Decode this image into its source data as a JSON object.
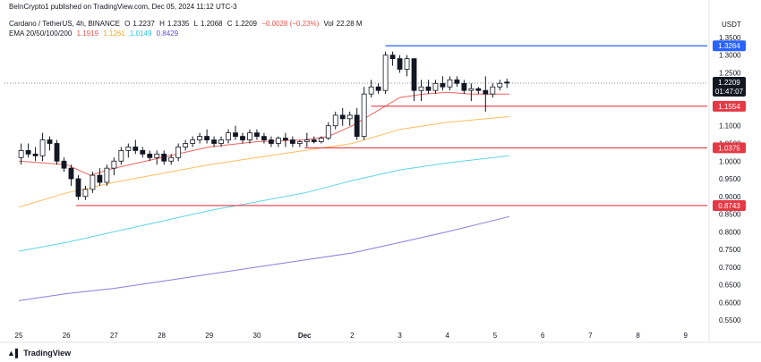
{
  "published": "BeInCrypto1 published on TradingView.com, Dec 05, 2024 11:12 UTC-3",
  "header": {
    "symbol": "Cardano / TetherUS, 4h, BINANCE",
    "o_label": "O",
    "o_val": "1.2237",
    "h_label": "H",
    "h_val": "1.2335",
    "l_label": "L",
    "l_val": "1.2068",
    "c_label": "C",
    "c_val": "1.2209",
    "change": "−0.0028 (−0.23%)",
    "vol_label": "Vol",
    "vol_val": "22.28 M",
    "ema_label": "EMA 20/50/100/200",
    "ema20": "1.1919",
    "ema50": "1.1261",
    "ema100": "1.0149",
    "ema200": "0.8429"
  },
  "colors": {
    "up": "#ffffff",
    "down": "#131722",
    "wick": "#131722",
    "ema20": "#f05350",
    "ema50": "#ffb74d",
    "ema100": "#4dd0e1",
    "ema200": "#7e6fdb",
    "resistance": "#2962ff",
    "support": "#e53945",
    "price_line": "#8a8a8a"
  },
  "footer": {
    "brand": "TradingView"
  },
  "chart_data": {
    "type": "candlestick",
    "title": "Cardano / TetherUS, 4h, BINANCE",
    "currency": "USDT",
    "ylim": [
      0.52,
      1.37
    ],
    "y_ticks": [
      "1.3500",
      "1.3000",
      "1.2500",
      "1.2000",
      "1.1500",
      "1.1000",
      "1.0500",
      "1.0000",
      "0.9500",
      "0.9000",
      "0.8500",
      "0.8000",
      "0.7500",
      "0.7000",
      "0.6500",
      "0.6000",
      "0.5500"
    ],
    "x_ticks": [
      "25",
      "26",
      "27",
      "28",
      "29",
      "30",
      "Dec",
      "2",
      "3",
      "4",
      "5",
      "6",
      "7",
      "8",
      "9"
    ],
    "candles": [
      {
        "x": 0.05,
        "o": 1.01,
        "h": 1.05,
        "l": 0.99,
        "c": 1.03
      },
      {
        "x": 0.2,
        "o": 1.03,
        "h": 1.05,
        "l": 1.01,
        "c": 1.02
      },
      {
        "x": 0.35,
        "o": 1.02,
        "h": 1.04,
        "l": 1.0,
        "c": 1.015
      },
      {
        "x": 0.5,
        "o": 1.015,
        "h": 1.08,
        "l": 1.0,
        "c": 1.06
      },
      {
        "x": 0.65,
        "o": 1.06,
        "h": 1.07,
        "l": 1.03,
        "c": 1.05
      },
      {
        "x": 0.8,
        "o": 1.05,
        "h": 1.06,
        "l": 0.99,
        "c": 1.0
      },
      {
        "x": 0.95,
        "o": 1.0,
        "h": 1.01,
        "l": 0.97,
        "c": 0.98
      },
      {
        "x": 1.1,
        "o": 0.98,
        "h": 0.99,
        "l": 0.93,
        "c": 0.95
      },
      {
        "x": 1.25,
        "o": 0.95,
        "h": 0.96,
        "l": 0.89,
        "c": 0.9
      },
      {
        "x": 1.4,
        "o": 0.9,
        "h": 0.93,
        "l": 0.89,
        "c": 0.92
      },
      {
        "x": 1.55,
        "o": 0.92,
        "h": 0.97,
        "l": 0.91,
        "c": 0.96
      },
      {
        "x": 1.7,
        "o": 0.96,
        "h": 0.98,
        "l": 0.93,
        "c": 0.94
      },
      {
        "x": 1.85,
        "o": 0.94,
        "h": 0.99,
        "l": 0.93,
        "c": 0.98
      },
      {
        "x": 2.0,
        "o": 0.98,
        "h": 1.01,
        "l": 0.96,
        "c": 1.0
      },
      {
        "x": 2.15,
        "o": 1.0,
        "h": 1.04,
        "l": 0.99,
        "c": 1.03
      },
      {
        "x": 2.3,
        "o": 1.03,
        "h": 1.05,
        "l": 1.01,
        "c": 1.04
      },
      {
        "x": 2.45,
        "o": 1.04,
        "h": 1.06,
        "l": 1.02,
        "c": 1.03
      },
      {
        "x": 2.6,
        "o": 1.03,
        "h": 1.04,
        "l": 1.01,
        "c": 1.02
      },
      {
        "x": 2.75,
        "o": 1.02,
        "h": 1.03,
        "l": 1.0,
        "c": 1.01
      },
      {
        "x": 2.9,
        "o": 1.01,
        "h": 1.03,
        "l": 0.99,
        "c": 1.02
      },
      {
        "x": 3.05,
        "o": 1.02,
        "h": 1.03,
        "l": 0.99,
        "c": 1.0
      },
      {
        "x": 3.2,
        "o": 1.0,
        "h": 1.02,
        "l": 0.99,
        "c": 1.01
      },
      {
        "x": 3.35,
        "o": 1.01,
        "h": 1.05,
        "l": 1.0,
        "c": 1.04
      },
      {
        "x": 3.5,
        "o": 1.04,
        "h": 1.06,
        "l": 1.03,
        "c": 1.05
      },
      {
        "x": 3.65,
        "o": 1.05,
        "h": 1.07,
        "l": 1.04,
        "c": 1.06
      },
      {
        "x": 3.8,
        "o": 1.06,
        "h": 1.08,
        "l": 1.05,
        "c": 1.07
      },
      {
        "x": 3.95,
        "o": 1.07,
        "h": 1.09,
        "l": 1.05,
        "c": 1.06
      },
      {
        "x": 4.1,
        "o": 1.06,
        "h": 1.07,
        "l": 1.04,
        "c": 1.05
      },
      {
        "x": 4.25,
        "o": 1.05,
        "h": 1.07,
        "l": 1.04,
        "c": 1.06
      },
      {
        "x": 4.4,
        "o": 1.06,
        "h": 1.09,
        "l": 1.05,
        "c": 1.08
      },
      {
        "x": 4.55,
        "o": 1.08,
        "h": 1.1,
        "l": 1.06,
        "c": 1.07
      },
      {
        "x": 4.7,
        "o": 1.07,
        "h": 1.08,
        "l": 1.05,
        "c": 1.06
      },
      {
        "x": 4.85,
        "o": 1.06,
        "h": 1.09,
        "l": 1.05,
        "c": 1.08
      },
      {
        "x": 5.0,
        "o": 1.08,
        "h": 1.09,
        "l": 1.06,
        "c": 1.07
      },
      {
        "x": 5.15,
        "o": 1.07,
        "h": 1.08,
        "l": 1.05,
        "c": 1.06
      },
      {
        "x": 5.3,
        "o": 1.06,
        "h": 1.07,
        "l": 1.04,
        "c": 1.05
      },
      {
        "x": 5.45,
        "o": 1.05,
        "h": 1.07,
        "l": 1.04,
        "c": 1.065
      },
      {
        "x": 5.6,
        "o": 1.065,
        "h": 1.08,
        "l": 1.04,
        "c": 1.06
      },
      {
        "x": 5.75,
        "o": 1.06,
        "h": 1.07,
        "l": 1.04,
        "c": 1.05
      },
      {
        "x": 5.9,
        "o": 1.05,
        "h": 1.06,
        "l": 1.04,
        "c": 1.055
      },
      {
        "x": 6.05,
        "o": 1.055,
        "h": 1.08,
        "l": 1.04,
        "c": 1.06
      },
      {
        "x": 6.2,
        "o": 1.06,
        "h": 1.07,
        "l": 1.05,
        "c": 1.055
      },
      {
        "x": 6.35,
        "o": 1.055,
        "h": 1.07,
        "l": 1.05,
        "c": 1.065
      },
      {
        "x": 6.5,
        "o": 1.065,
        "h": 1.11,
        "l": 1.06,
        "c": 1.1
      },
      {
        "x": 6.65,
        "o": 1.1,
        "h": 1.14,
        "l": 1.09,
        "c": 1.13
      },
      {
        "x": 6.8,
        "o": 1.13,
        "h": 1.15,
        "l": 1.1,
        "c": 1.12
      },
      {
        "x": 6.95,
        "o": 1.12,
        "h": 1.14,
        "l": 1.1,
        "c": 1.13
      },
      {
        "x": 7.1,
        "o": 1.13,
        "h": 1.15,
        "l": 1.06,
        "c": 1.07
      },
      {
        "x": 7.25,
        "o": 1.07,
        "h": 1.21,
        "l": 1.06,
        "c": 1.19
      },
      {
        "x": 7.4,
        "o": 1.19,
        "h": 1.23,
        "l": 1.18,
        "c": 1.21
      },
      {
        "x": 7.55,
        "o": 1.21,
        "h": 1.22,
        "l": 1.19,
        "c": 1.2
      },
      {
        "x": 7.7,
        "o": 1.2,
        "h": 1.31,
        "l": 1.19,
        "c": 1.3
      },
      {
        "x": 7.85,
        "o": 1.3,
        "h": 1.31,
        "l": 1.27,
        "c": 1.29
      },
      {
        "x": 8.0,
        "o": 1.29,
        "h": 1.3,
        "l": 1.25,
        "c": 1.26
      },
      {
        "x": 8.15,
        "o": 1.26,
        "h": 1.3,
        "l": 1.24,
        "c": 1.29
      },
      {
        "x": 8.3,
        "o": 1.29,
        "h": 1.29,
        "l": 1.17,
        "c": 1.2
      },
      {
        "x": 8.45,
        "o": 1.2,
        "h": 1.23,
        "l": 1.17,
        "c": 1.21
      },
      {
        "x": 8.6,
        "o": 1.21,
        "h": 1.23,
        "l": 1.19,
        "c": 1.2
      },
      {
        "x": 8.75,
        "o": 1.2,
        "h": 1.23,
        "l": 1.19,
        "c": 1.22
      },
      {
        "x": 8.9,
        "o": 1.22,
        "h": 1.24,
        "l": 1.2,
        "c": 1.21
      },
      {
        "x": 9.05,
        "o": 1.21,
        "h": 1.24,
        "l": 1.2,
        "c": 1.23
      },
      {
        "x": 9.2,
        "o": 1.23,
        "h": 1.24,
        "l": 1.21,
        "c": 1.22
      },
      {
        "x": 9.35,
        "o": 1.22,
        "h": 1.23,
        "l": 1.19,
        "c": 1.2
      },
      {
        "x": 9.5,
        "o": 1.2,
        "h": 1.22,
        "l": 1.17,
        "c": 1.205
      },
      {
        "x": 9.65,
        "o": 1.205,
        "h": 1.21,
        "l": 1.19,
        "c": 1.2
      },
      {
        "x": 9.8,
        "o": 1.2,
        "h": 1.24,
        "l": 1.14,
        "c": 1.19
      },
      {
        "x": 9.95,
        "o": 1.19,
        "h": 1.22,
        "l": 1.18,
        "c": 1.21
      },
      {
        "x": 10.1,
        "o": 1.21,
        "h": 1.23,
        "l": 1.2,
        "c": 1.22
      },
      {
        "x": 10.25,
        "o": 1.2237,
        "h": 1.2335,
        "l": 1.2068,
        "c": 1.2209
      }
    ],
    "ema": [
      {
        "name": "EMA 20",
        "value": "1.1919",
        "color_key": "ema20",
        "points": [
          [
            0,
            1.0
          ],
          [
            1,
            0.99
          ],
          [
            1.5,
            0.96
          ],
          [
            2,
            0.98
          ],
          [
            3,
            1.01
          ],
          [
            4,
            1.04
          ],
          [
            5,
            1.055
          ],
          [
            6,
            1.06
          ],
          [
            6.5,
            1.07
          ],
          [
            7,
            1.1
          ],
          [
            7.5,
            1.14
          ],
          [
            8,
            1.18
          ],
          [
            8.5,
            1.19
          ],
          [
            9,
            1.195
          ],
          [
            9.5,
            1.19
          ],
          [
            10.3,
            1.19
          ]
        ]
      },
      {
        "name": "EMA 50",
        "value": "1.1261",
        "color_key": "ema50",
        "points": [
          [
            0,
            0.87
          ],
          [
            1,
            0.91
          ],
          [
            2,
            0.94
          ],
          [
            3,
            0.965
          ],
          [
            4,
            0.99
          ],
          [
            5,
            1.01
          ],
          [
            6,
            1.03
          ],
          [
            7,
            1.05
          ],
          [
            7.5,
            1.07
          ],
          [
            8,
            1.09
          ],
          [
            9,
            1.11
          ],
          [
            10.3,
            1.126
          ]
        ]
      },
      {
        "name": "EMA 100",
        "value": "1.0149",
        "color_key": "ema100",
        "points": [
          [
            0,
            0.745
          ],
          [
            1,
            0.77
          ],
          [
            2,
            0.8
          ],
          [
            3,
            0.83
          ],
          [
            4,
            0.86
          ],
          [
            5,
            0.885
          ],
          [
            6,
            0.91
          ],
          [
            7,
            0.945
          ],
          [
            8,
            0.975
          ],
          [
            9,
            0.995
          ],
          [
            10.3,
            1.015
          ]
        ]
      },
      {
        "name": "EMA 200",
        "value": "0.8429",
        "color_key": "ema200",
        "points": [
          [
            0,
            0.605
          ],
          [
            1,
            0.625
          ],
          [
            2,
            0.64
          ],
          [
            3,
            0.66
          ],
          [
            4,
            0.68
          ],
          [
            5,
            0.7
          ],
          [
            6,
            0.72
          ],
          [
            7,
            0.74
          ],
          [
            8,
            0.77
          ],
          [
            9,
            0.8
          ],
          [
            10.3,
            0.843
          ]
        ]
      }
    ],
    "levels": [
      {
        "value": 1.3264,
        "label": "1.3264",
        "color_key": "resistance",
        "x_start": 7.7
      },
      {
        "value": 1.1554,
        "label": "1.1554",
        "color_key": "support",
        "x_start": 7.4
      },
      {
        "value": 1.0375,
        "label": "1.0375",
        "color_key": "support",
        "x_start": 6.0
      },
      {
        "value": 0.8743,
        "label": "0.8743",
        "color_key": "support",
        "x_start": 1.2
      }
    ],
    "last_price": {
      "value": 1.2209,
      "label": "1.2209",
      "countdown": "01:47:07"
    }
  }
}
